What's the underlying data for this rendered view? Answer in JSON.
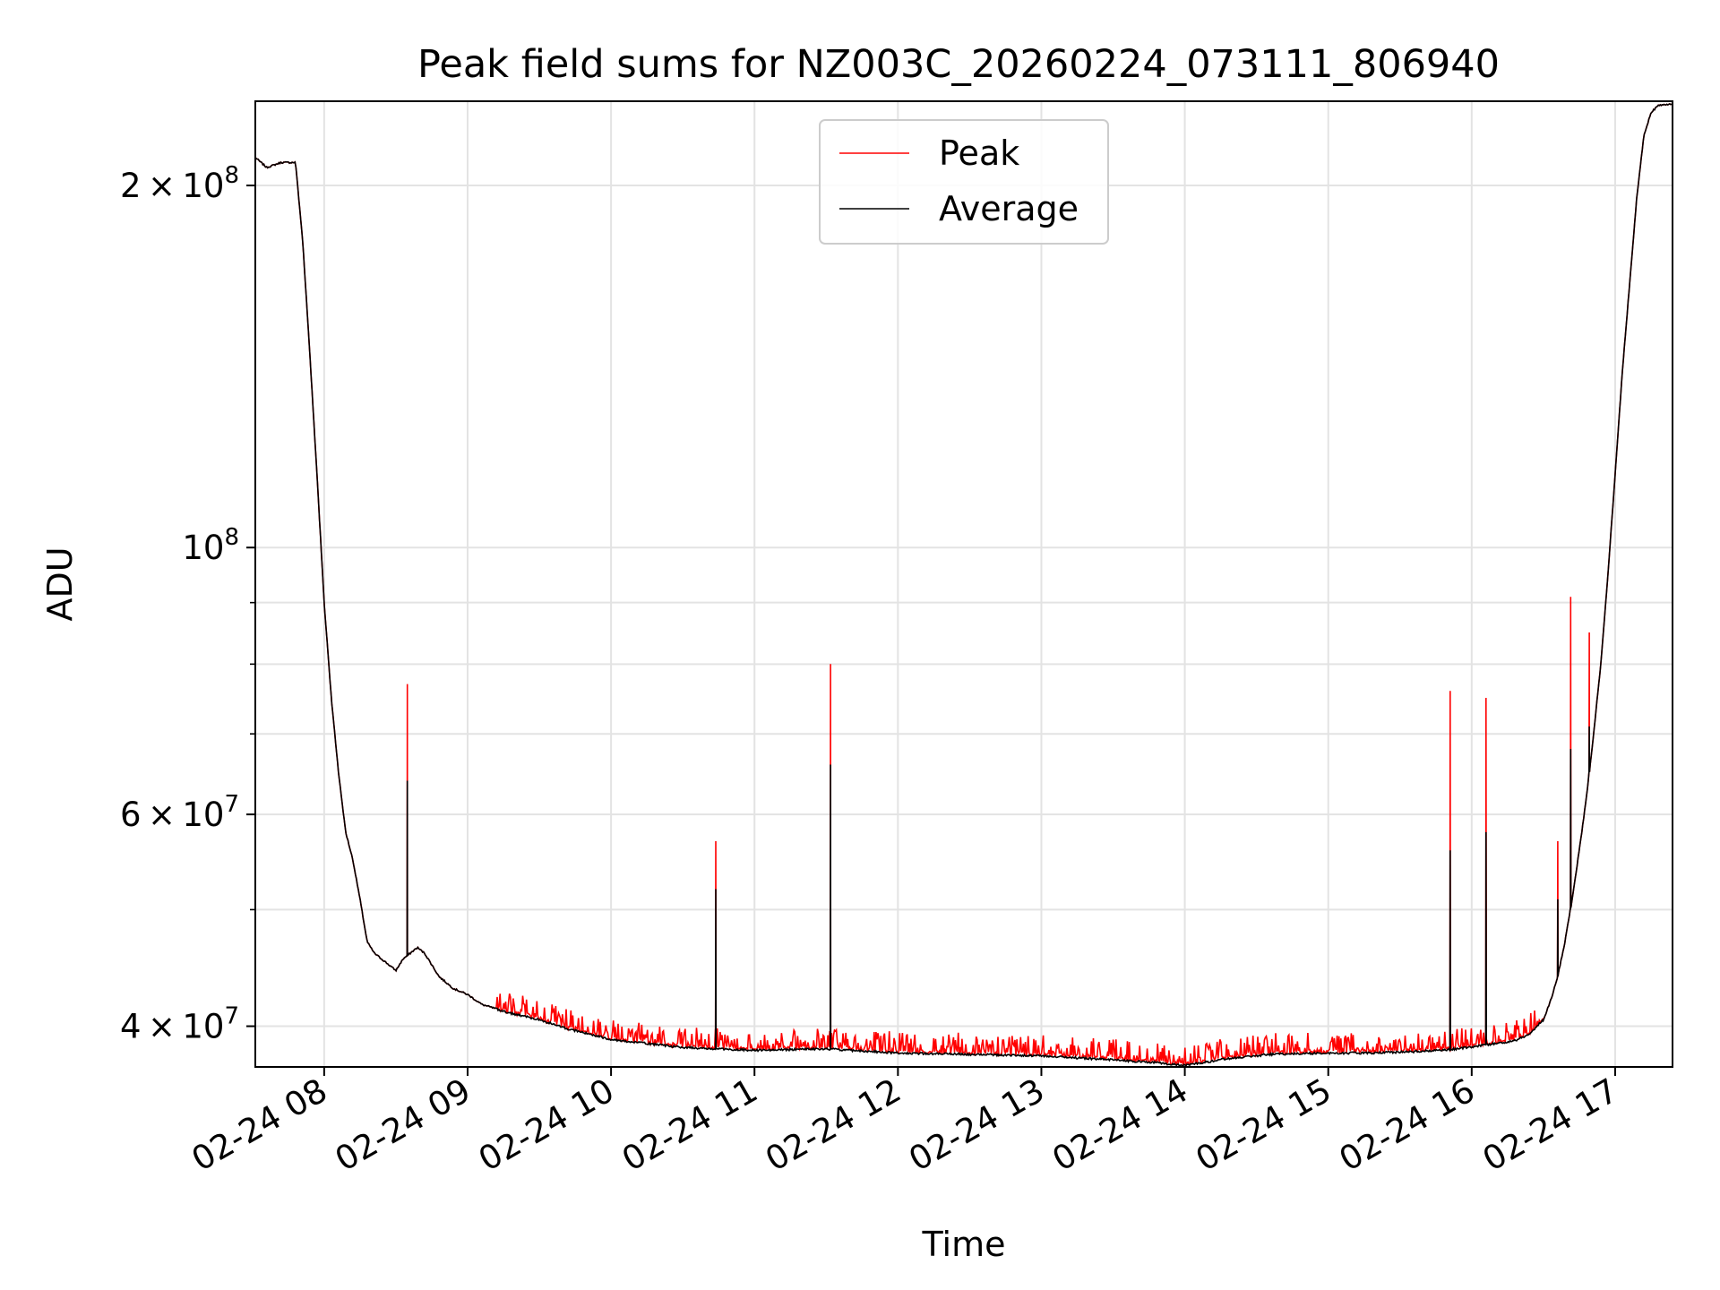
{
  "chart_data": {
    "type": "line",
    "title": "Peak field sums for NZ003C_20260224_073111_806940",
    "xlabel": "Time",
    "ylabel": "ADU",
    "yscale": "log",
    "xlim": [
      7.52,
      17.4
    ],
    "ylim": [
      37000000,
      235000000
    ],
    "grid": true,
    "legend_position": "top-center",
    "x_ticks": [
      8,
      9,
      10,
      11,
      12,
      13,
      14,
      15,
      16,
      17
    ],
    "x_tick_labels": [
      "02-24 08",
      "02-24 09",
      "02-24 10",
      "02-24 11",
      "02-24 12",
      "02-24 13",
      "02-24 14",
      "02-24 15",
      "02-24 16",
      "02-24 17"
    ],
    "y_major_ticks": [
      {
        "value": 40000000,
        "base": "4",
        "times": "×",
        "ten": "10",
        "exp": "7"
      },
      {
        "value": 60000000,
        "base": "6",
        "times": "×",
        "ten": "10",
        "exp": "7"
      },
      {
        "value": 100000000,
        "base": "",
        "times": "",
        "ten": "10",
        "exp": "8"
      },
      {
        "value": 200000000,
        "base": "2",
        "times": "×",
        "ten": "10",
        "exp": "8"
      }
    ],
    "y_minor_ticks": [
      50000000,
      70000000,
      80000000,
      90000000
    ],
    "series": [
      {
        "name": "Peak",
        "color": "#ff0000"
      },
      {
        "name": "Average",
        "color": "#000000"
      }
    ],
    "baseline_x": [
      7.52,
      7.6,
      7.7,
      7.8,
      7.85,
      7.9,
      7.95,
      8.0,
      8.05,
      8.1,
      8.15,
      8.2,
      8.25,
      8.3,
      8.35,
      8.4,
      8.45,
      8.5,
      8.55,
      8.6,
      8.65,
      8.7,
      8.75,
      8.8,
      8.9,
      9.0,
      9.1,
      9.3,
      9.5,
      9.7,
      10.0,
      10.5,
      11.0,
      11.5,
      12.0,
      12.5,
      13.0,
      13.5,
      13.8,
      14.0,
      14.3,
      14.6,
      15.0,
      15.3,
      15.6,
      15.9,
      16.1,
      16.3,
      16.4,
      16.5,
      16.55,
      16.6,
      16.65,
      16.7,
      16.75,
      16.8,
      16.85,
      16.9,
      16.95,
      17.0,
      17.05,
      17.1,
      17.15,
      17.2,
      17.25,
      17.3,
      17.4
    ],
    "baseline_y": [
      211000000,
      207000000,
      209000000,
      209000000,
      180000000,
      145000000,
      115000000,
      90000000,
      75000000,
      65000000,
      58000000,
      55000000,
      51000000,
      47000000,
      46000000,
      45500000,
      45000000,
      44500000,
      45500000,
      46000000,
      46500000,
      46000000,
      45000000,
      44000000,
      43000000,
      42500000,
      41700000,
      41000000,
      40500000,
      39800000,
      39000000,
      38400000,
      38200000,
      38300000,
      38000000,
      37900000,
      37800000,
      37500000,
      37300000,
      37100000,
      37600000,
      37900000,
      38000000,
      38000000,
      38100000,
      38300000,
      38600000,
      38900000,
      39400000,
      40500000,
      42000000,
      44000000,
      47000000,
      51000000,
      56000000,
      62000000,
      70000000,
      80000000,
      95000000,
      115000000,
      140000000,
      165000000,
      195000000,
      220000000,
      230000000,
      233000000,
      234000000
    ],
    "spikes": [
      {
        "x": 8.58,
        "peak": 77000000,
        "average": 64000000
      },
      {
        "x": 10.73,
        "peak": 57000000,
        "average": 52000000
      },
      {
        "x": 11.53,
        "peak": 80000000,
        "average": 66000000
      },
      {
        "x": 15.85,
        "peak": 76000000,
        "average": 56000000
      },
      {
        "x": 16.1,
        "peak": 75000000,
        "average": 58000000
      },
      {
        "x": 16.6,
        "peak": 57000000,
        "average": 51000000
      },
      {
        "x": 16.69,
        "peak": 91000000,
        "average": 68000000
      },
      {
        "x": 16.82,
        "peak": 85000000,
        "average": 71000000
      }
    ]
  }
}
